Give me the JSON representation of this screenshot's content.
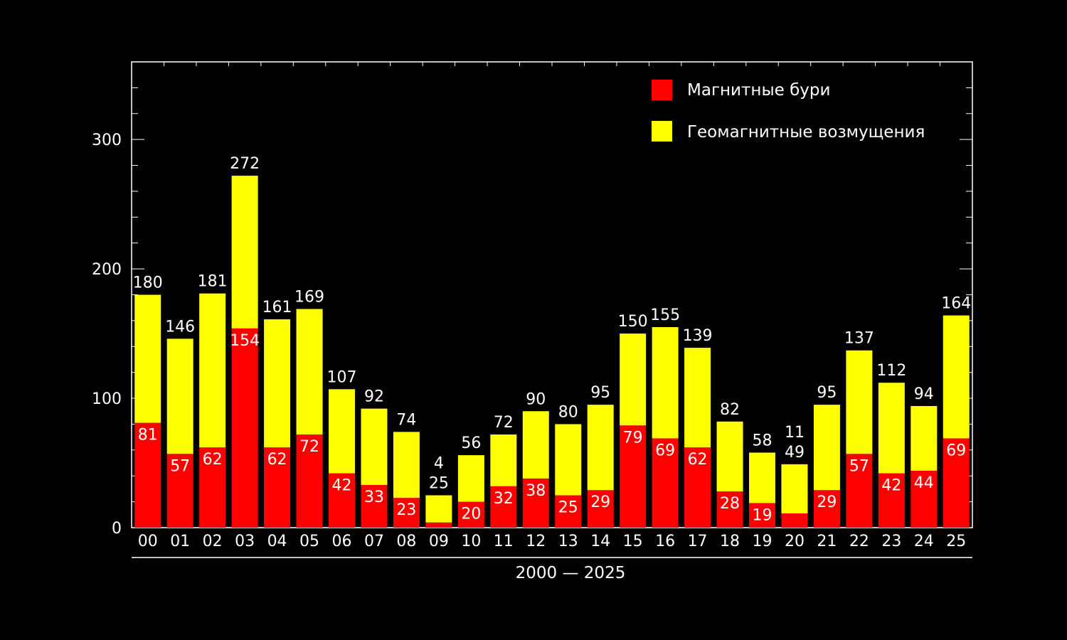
{
  "chart_data": {
    "type": "bar",
    "stacked": true,
    "categories": [
      "00",
      "01",
      "02",
      "03",
      "04",
      "05",
      "06",
      "07",
      "08",
      "09",
      "10",
      "11",
      "12",
      "13",
      "14",
      "15",
      "16",
      "17",
      "18",
      "19",
      "20",
      "21",
      "22",
      "23",
      "24",
      "25"
    ],
    "series": [
      {
        "name": "Магнитные бури",
        "color": "#ff0000",
        "values": [
          81,
          57,
          62,
          154,
          62,
          72,
          42,
          33,
          23,
          4,
          20,
          32,
          38,
          25,
          29,
          79,
          69,
          62,
          28,
          19,
          11,
          29,
          57,
          42,
          44,
          69
        ]
      },
      {
        "name": "Геомагнитные возмущения",
        "color": "#ffff00",
        "values": [
          99,
          89,
          119,
          118,
          99,
          97,
          65,
          59,
          51,
          21,
          36,
          40,
          52,
          55,
          66,
          71,
          86,
          77,
          54,
          39,
          38,
          66,
          80,
          70,
          50,
          95
        ]
      }
    ],
    "totals": [
      180,
      146,
      181,
      272,
      161,
      169,
      107,
      92,
      74,
      25,
      56,
      72,
      90,
      80,
      95,
      150,
      155,
      139,
      82,
      58,
      49,
      95,
      137,
      112,
      94,
      164
    ],
    "yticks": [
      0,
      100,
      200,
      300
    ],
    "ylim": [
      0,
      360
    ],
    "xrange_label": "2000 — 2025",
    "legend_position": "top-right",
    "background": "#000000",
    "axis_color": "#ffffff"
  }
}
